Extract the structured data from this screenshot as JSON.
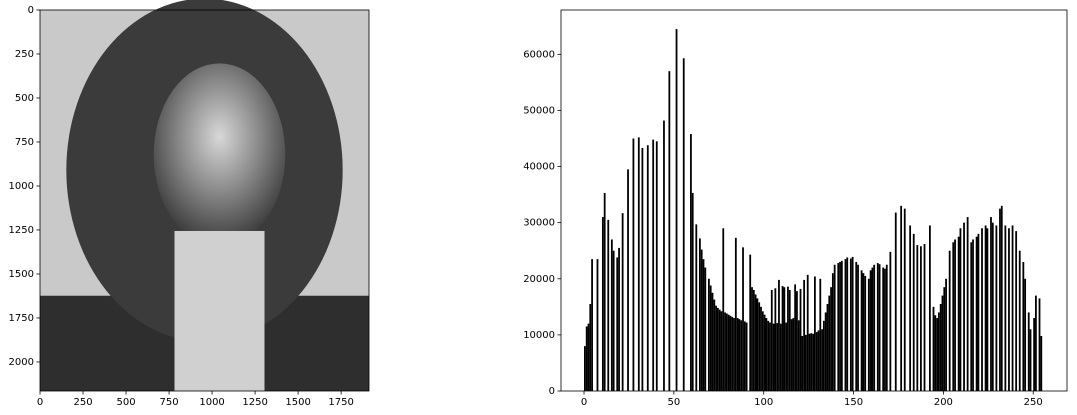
{
  "chart_data": [
    {
      "type": "image",
      "xlim": [
        0,
        1912
      ],
      "ylim": [
        2165,
        0
      ],
      "xticks": [
        0,
        250,
        500,
        750,
        1000,
        1250,
        1500,
        1750
      ],
      "yticks": [
        0,
        250,
        500,
        750,
        1000,
        1250,
        1500,
        1750,
        2000
      ]
    },
    {
      "type": "histogram",
      "color": "#000000",
      "xlim": [
        -12.8,
        268.8
      ],
      "ylim": [
        0,
        67900
      ],
      "xticks": [
        0,
        50,
        100,
        150,
        200,
        250
      ],
      "yticks": [
        0,
        10000,
        20000,
        30000,
        40000,
        50000,
        60000
      ],
      "bins": [
        0,
        1,
        2,
        3,
        4,
        5,
        6,
        7,
        8,
        9,
        10,
        11,
        12,
        13,
        14,
        15,
        16,
        17,
        18,
        19,
        20,
        21,
        22,
        23,
        24,
        25,
        26,
        27,
        28,
        29,
        30,
        31,
        32,
        33,
        34,
        35,
        36,
        37,
        38,
        39,
        40,
        41,
        42,
        43,
        44,
        45,
        46,
        47,
        48,
        49,
        50,
        51,
        52,
        53,
        54,
        55,
        56,
        57,
        58,
        59,
        60,
        61,
        62,
        63,
        64,
        65,
        66,
        67,
        68,
        69,
        70,
        71,
        72,
        73,
        74,
        75,
        76,
        77,
        78,
        79,
        80,
        81,
        82,
        83,
        84,
        85,
        86,
        87,
        88,
        89,
        90,
        91,
        92,
        93,
        94,
        95,
        96,
        97,
        98,
        99,
        100,
        101,
        102,
        103,
        104,
        105,
        106,
        107,
        108,
        109,
        110,
        111,
        112,
        113,
        114,
        115,
        116,
        117,
        118,
        119,
        120,
        121,
        122,
        123,
        124,
        125,
        126,
        127,
        128,
        129,
        130,
        131,
        132,
        133,
        134,
        135,
        136,
        137,
        138,
        139,
        140,
        141,
        142,
        143,
        144,
        145,
        146,
        147,
        148,
        149,
        150,
        151,
        152,
        153,
        154,
        155,
        156,
        157,
        158,
        159,
        160,
        161,
        162,
        163,
        164,
        165,
        166,
        167,
        168,
        169,
        170,
        171,
        172,
        173,
        174,
        175,
        176,
        177,
        178,
        179,
        180,
        181,
        182,
        183,
        184,
        185,
        186,
        187,
        188,
        189,
        190,
        191,
        192,
        193,
        194,
        195,
        196,
        197,
        198,
        199,
        200,
        201,
        202,
        203,
        204,
        205,
        206,
        207,
        208,
        209,
        210,
        211,
        212,
        213,
        214,
        215,
        216,
        217,
        218,
        219,
        220,
        221,
        222,
        223,
        224,
        225,
        226,
        227,
        228,
        229,
        230,
        231,
        232,
        233,
        234,
        235,
        236,
        237,
        238,
        239,
        240,
        241,
        242,
        243,
        244,
        245,
        246,
        247,
        248,
        249,
        250,
        251,
        252,
        253,
        254,
        255,
        256
      ],
      "values": [
        8000,
        11500,
        12000,
        15500,
        23500,
        0,
        0,
        23500,
        0,
        0,
        31000,
        35300,
        0,
        30500,
        0,
        27000,
        25000,
        0,
        23800,
        25500,
        0,
        31700,
        0,
        0,
        39500,
        0,
        0,
        45000,
        0,
        0,
        45200,
        0,
        43300,
        0,
        0,
        43800,
        0,
        0,
        44800,
        0,
        44500,
        0,
        0,
        0,
        48200,
        0,
        0,
        57000,
        0,
        0,
        0,
        64500,
        0,
        0,
        0,
        59300,
        0,
        0,
        0,
        45800,
        35300,
        0,
        29700,
        0,
        27200,
        25200,
        23500,
        22000,
        0,
        20000,
        18800,
        17500,
        16300,
        15200,
        14800,
        14500,
        14200,
        29000,
        14000,
        13800,
        13600,
        13400,
        13200,
        13000,
        27300,
        13000,
        12800,
        12600,
        25600,
        12400,
        12200,
        0,
        24300,
        18500,
        18000,
        17200,
        16500,
        15800,
        15000,
        14200,
        13600,
        13000,
        12500,
        12200,
        18000,
        12000,
        18300,
        12100,
        19800,
        12000,
        18700,
        18500,
        12200,
        18600,
        18000,
        12800,
        13000,
        19000,
        17800,
        12600,
        18200,
        9800,
        19800,
        10000,
        20700,
        10200,
        10300,
        10200,
        20400,
        10500,
        10800,
        20000,
        11000,
        12500,
        14000,
        15500,
        17000,
        18500,
        21000,
        22500,
        0,
        22800,
        23000,
        23200,
        0,
        23500,
        23800,
        0,
        23600,
        23900,
        0,
        23000,
        22500,
        0,
        21500,
        21000,
        20500,
        0,
        20000,
        21500,
        22000,
        22500,
        0,
        22800,
        22600,
        0,
        22000,
        21800,
        22500,
        0,
        24800,
        0,
        0,
        31800,
        0,
        0,
        33000,
        0,
        32500,
        0,
        0,
        29500,
        0,
        28000,
        0,
        26000,
        0,
        25800,
        0,
        26200,
        0,
        0,
        29500,
        0,
        15000,
        13500,
        13000,
        14000,
        15500,
        17000,
        18500,
        20000,
        0,
        25000,
        0,
        26500,
        27000,
        0,
        27500,
        29000,
        0,
        30000,
        0,
        31000,
        0,
        26500,
        27000,
        0,
        27500,
        28000,
        0,
        29000,
        0,
        29500,
        29000,
        0,
        31000,
        30000,
        0,
        29500,
        0,
        32500,
        33000,
        0,
        29500,
        0,
        29000,
        0,
        29500,
        0,
        28500,
        0,
        25000,
        0,
        23000,
        20000,
        0,
        14000,
        11000,
        0,
        13000,
        17000,
        0,
        16500,
        9800,
        0
      ]
    }
  ]
}
